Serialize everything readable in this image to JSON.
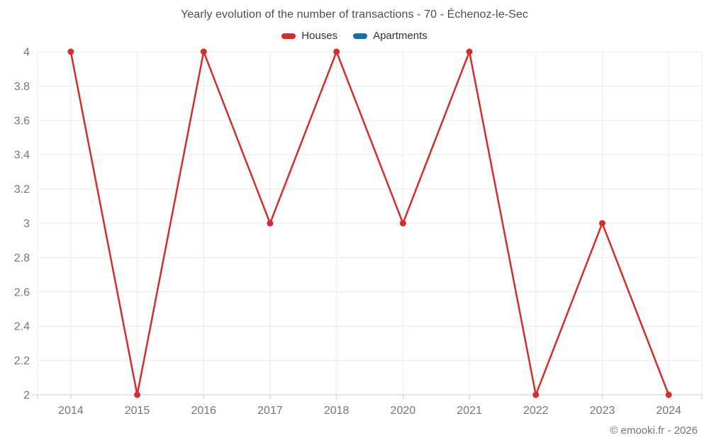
{
  "footer": "© emooki.fr - 2026",
  "colors": {
    "grid": "#ebebeb",
    "axis_line": "#cccccc",
    "tick_mark": "#cccccc",
    "tick_label": "#767676",
    "title_text": "#4d4d4d",
    "legend_text": "#333333"
  },
  "chart_data": {
    "type": "line",
    "title": "Yearly evolution of the number of transactions - 70 - Échenoz-le-Sec",
    "categories": [
      "2014",
      "2015",
      "2016",
      "2017",
      "2018",
      "2020",
      "2021",
      "2022",
      "2023",
      "2024"
    ],
    "series": [
      {
        "name": "Houses",
        "color": "#d62c2e",
        "values": [
          4,
          2,
          4,
          3,
          4,
          3,
          4,
          2,
          3,
          2
        ]
      },
      {
        "name": "Apartments",
        "color": "#17719f",
        "values": []
      }
    ],
    "xlabel": "",
    "ylabel": "",
    "ylim": [
      2,
      4
    ],
    "yticks": [
      4,
      3.8,
      3.6,
      3.4,
      3.2,
      3,
      2.8,
      2.6,
      2.4,
      2.2,
      2
    ],
    "grid": true,
    "legend_position": "top",
    "marker": "circle"
  }
}
